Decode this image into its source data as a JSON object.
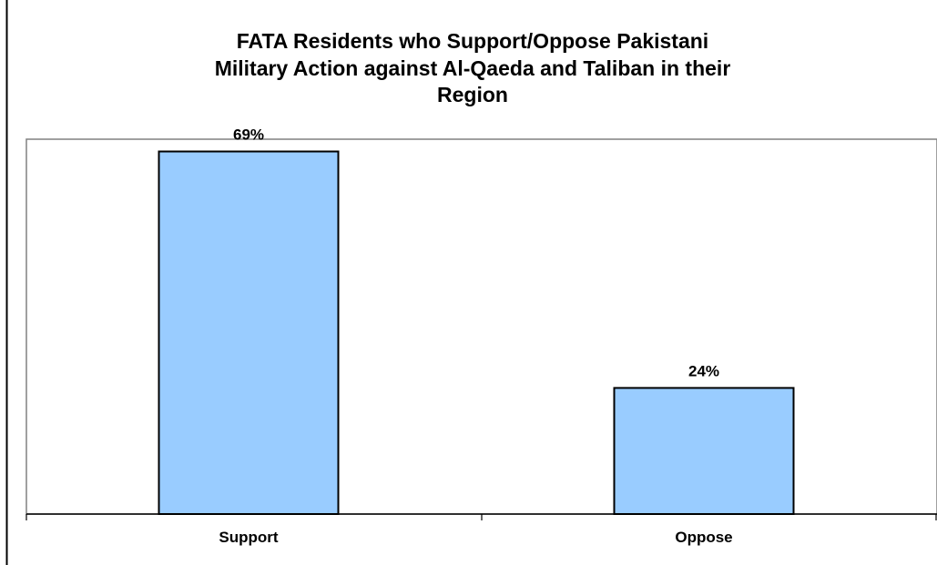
{
  "chart_data": {
    "type": "bar",
    "title_lines": [
      "FATA Residents who Support/Oppose Pakistani",
      "Military Action against Al-Qaeda and Taliban in their",
      "Region"
    ],
    "categories": [
      "Support",
      "Oppose"
    ],
    "values": [
      69,
      24
    ],
    "value_labels": [
      "69%",
      "24%"
    ],
    "ylim": [
      0,
      80
    ],
    "xlabel": "",
    "ylabel": "",
    "grid": false,
    "legend": "none",
    "colors": {
      "bar_fill": "#99CCFF",
      "bar_stroke": "#000000",
      "plot_border": "#808080",
      "axis": "#000000"
    }
  }
}
